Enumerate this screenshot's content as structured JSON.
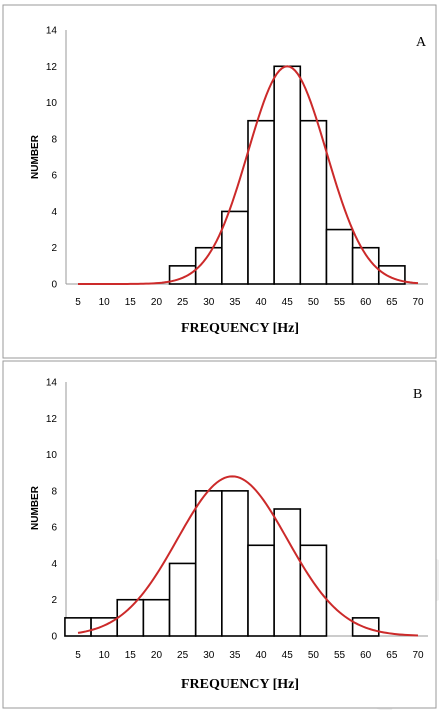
{
  "chart_data": [
    {
      "type": "bar",
      "panel_label": "A",
      "xlabel": "FREQUENCY [Hz]",
      "ylabel": "NUMBER",
      "xlim": [
        5,
        70
      ],
      "ylim": [
        0,
        14
      ],
      "x_ticks": [
        5,
        10,
        15,
        20,
        25,
        30,
        35,
        40,
        45,
        50,
        55,
        60,
        65,
        70
      ],
      "y_ticks": [
        0,
        2,
        4,
        6,
        8,
        10,
        12,
        14
      ],
      "bin_width": 5,
      "bin_centers": [
        25,
        30,
        35,
        40,
        45,
        50,
        55,
        60,
        65
      ],
      "values": [
        1,
        2,
        4,
        9,
        12,
        9,
        3,
        2,
        1
      ],
      "fit_curve": {
        "type": "normal",
        "mean": 45,
        "sd": 7.5,
        "peak": 12,
        "color": "#cc2a2a"
      },
      "grid": false
    },
    {
      "type": "bar",
      "panel_label": "B",
      "xlabel": "FREQUENCY [Hz]",
      "ylabel": "NUMBER",
      "xlim": [
        5,
        70
      ],
      "ylim": [
        0,
        14
      ],
      "x_ticks": [
        5,
        10,
        15,
        20,
        25,
        30,
        35,
        40,
        45,
        50,
        55,
        60,
        65,
        70
      ],
      "y_ticks": [
        0,
        2,
        4,
        6,
        8,
        10,
        12,
        14
      ],
      "bin_width": 5,
      "bin_centers": [
        5,
        10,
        15,
        20,
        25,
        30,
        35,
        40,
        45,
        50,
        55,
        60
      ],
      "values": [
        1,
        1,
        2,
        2,
        4,
        8,
        8,
        5,
        7,
        5,
        0,
        1
      ],
      "fit_curve": {
        "type": "normal",
        "mean": 34.5,
        "sd": 10.5,
        "peak": 8.8,
        "color": "#cc2a2a"
      },
      "grid": false
    }
  ]
}
